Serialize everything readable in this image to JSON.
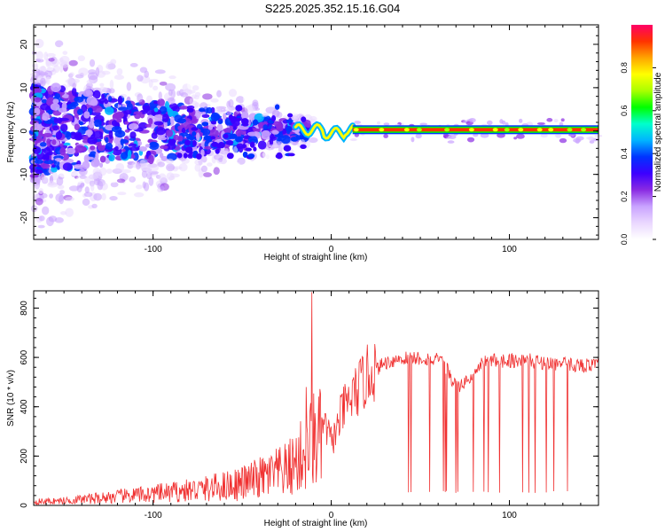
{
  "title": "S225.2025.352.15.16.G04",
  "chart_data": [
    {
      "type": "heatmap",
      "xlabel": "Height of straight line (km)",
      "ylabel": "Frequency (Hz)",
      "xlim": [
        -167,
        150
      ],
      "ylim": [
        -25,
        24.5
      ],
      "xticks": [
        -100,
        0,
        100
      ],
      "yticks": [
        -20,
        -10,
        0,
        10,
        20
      ],
      "colorbar": {
        "label": "Normalized spectral amplitude",
        "range": [
          0,
          1
        ],
        "ticks": [
          0.0,
          0.2,
          0.4,
          0.6,
          0.8
        ],
        "colormap": [
          "#ffffff",
          "#ead8ff",
          "#c9a3ff",
          "#8a2be2",
          "#3c00ff",
          "#0033ff",
          "#00b4ff",
          "#00ffcc",
          "#00ff00",
          "#aaff00",
          "#ffff00",
          "#ffa500",
          "#ff3300",
          "#ff0066"
        ]
      },
      "description_band": {
        "frequency_center_hz": 0.3,
        "strong_from_km": 12,
        "transition_from_km": -20
      }
    },
    {
      "type": "line",
      "xlabel": "Height of straight line (km)",
      "ylabel": "SNR (10 * v/v)",
      "xlim": [
        -167,
        150
      ],
      "ylim": [
        0,
        870
      ],
      "xticks": [
        -100,
        0,
        100
      ],
      "yticks": [
        0,
        200,
        400,
        600,
        800
      ],
      "color": "#f03030",
      "envelope": {
        "x": [
          -167,
          -150,
          -130,
          -110,
          -90,
          -70,
          -50,
          -35,
          -25,
          -20,
          -15,
          -12,
          -8,
          -5,
          -2,
          0,
          3,
          6,
          10,
          15,
          20,
          25,
          30,
          40,
          50,
          60,
          65,
          68,
          72,
          75,
          80,
          85,
          90,
          100,
          110,
          120,
          130,
          140,
          150
        ],
        "y": [
          20,
          25,
          40,
          55,
          70,
          90,
          120,
          160,
          190,
          230,
          280,
          320,
          380,
          330,
          300,
          260,
          300,
          380,
          420,
          470,
          520,
          560,
          590,
          610,
          610,
          600,
          570,
          510,
          490,
          510,
          540,
          590,
          600,
          600,
          600,
          590,
          585,
          580,
          580
        ]
      },
      "peaks": [
        {
          "x": -11,
          "y": 865
        },
        {
          "x": -14,
          "y": 480
        }
      ],
      "dropouts_from_km": 40,
      "dropout_level": 50
    }
  ]
}
